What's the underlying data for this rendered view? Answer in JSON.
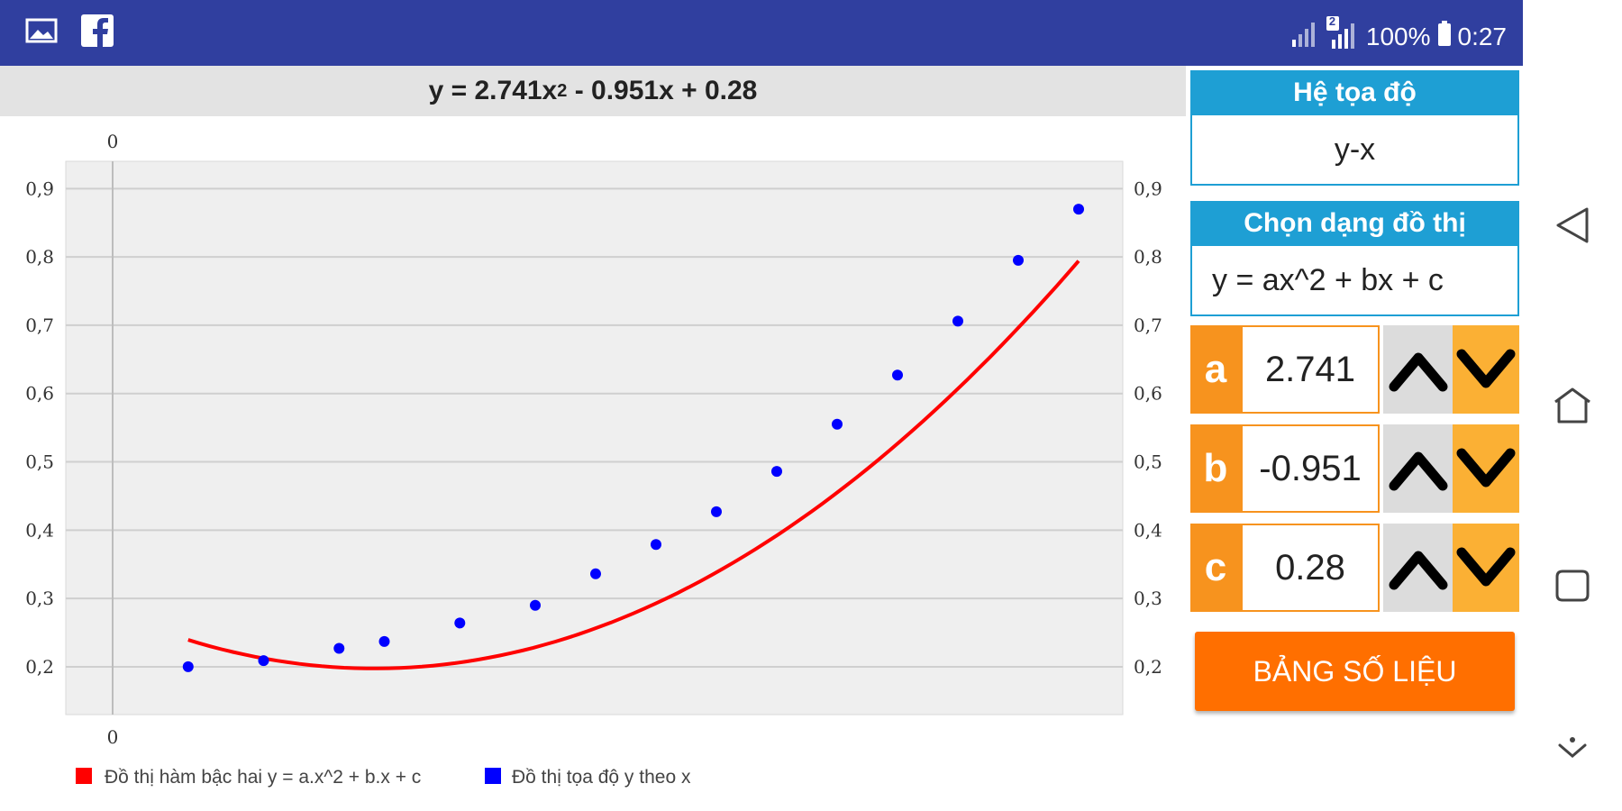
{
  "status_bar": {
    "left_icons": [
      "image-icon",
      "facebook-icon"
    ],
    "battery": "100%",
    "time": "0:27",
    "sim_badge": "2"
  },
  "equation": {
    "prefix": "y = 2.741x",
    "exponent": "2",
    "suffix": " - 0.951x + 0.28"
  },
  "panel": {
    "coord_system_header": "Hệ tọa độ",
    "coord_system_value": "y-x",
    "graph_type_header": "Chọn dạng đồ thị",
    "graph_type_value": "y = ax^2 + bx + c",
    "coefficients": [
      {
        "label": "a",
        "value": "2.741"
      },
      {
        "label": "b",
        "value": "-0.951"
      },
      {
        "label": "c",
        "value": "0.28"
      }
    ],
    "data_table_button": "BẢNG SỐ LIỆU"
  },
  "colors": {
    "status_bar": "#303f9f",
    "section_header": "#1e9fd4",
    "coef_accent": "#f7931e",
    "down_button": "#fbb034",
    "data_button": "#ff6f00",
    "curve": "#ff0000",
    "points": "#0000ff"
  },
  "chart_data": {
    "type": "line",
    "title": "",
    "xlabel": "",
    "ylabel": "",
    "x_axis_top_label": "0",
    "x_axis_bottom_label": "0",
    "ylim": [
      0.13,
      0.94
    ],
    "y_ticks": [
      "0,2",
      "0,3",
      "0,4",
      "0,5",
      "0,6",
      "0,7",
      "0,8",
      "0,9"
    ],
    "grid": true,
    "legend_position": "bottom-left",
    "series": [
      {
        "name": "Đồ thị hàm bậc hai y = a.x^2 + b.x + c",
        "kind": "curve",
        "color": "#ff0000",
        "a": 2.741,
        "b": -0.951,
        "c": 0.28
      },
      {
        "name": "Đồ thị tọa độ y theo x",
        "kind": "points",
        "color": "#0000ff",
        "x": [
          0.05,
          0.1,
          0.15,
          0.18,
          0.23,
          0.28,
          0.32,
          0.36,
          0.4,
          0.44,
          0.48,
          0.52,
          0.56,
          0.6,
          0.64
        ],
        "y": [
          0.2,
          0.209,
          0.227,
          0.237,
          0.264,
          0.29,
          0.336,
          0.379,
          0.427,
          0.486,
          0.555,
          0.627,
          0.706,
          0.795,
          0.87
        ]
      }
    ]
  }
}
